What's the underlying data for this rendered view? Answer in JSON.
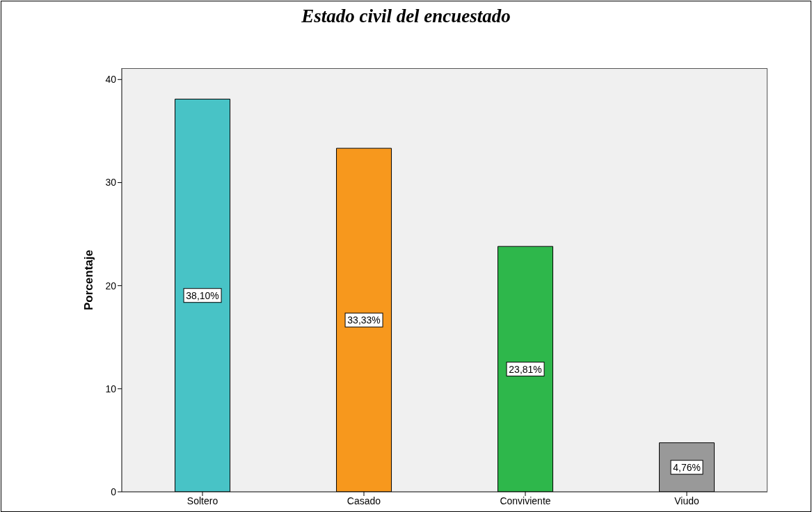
{
  "chart_data": {
    "type": "bar",
    "title": "Estado civil del encuestado",
    "ylabel": "Porcentaje",
    "categories": [
      "Soltero",
      "Casado",
      "Conviviente",
      "Viudo"
    ],
    "values": [
      38.1,
      33.33,
      23.81,
      4.76
    ],
    "colors": [
      "#48c3c6",
      "#f7981d",
      "#2eb74b",
      "#999999"
    ],
    "value_labels": [
      "38,10%",
      "33,33%",
      "23,81%",
      "4,76%"
    ],
    "ylim": [
      0,
      41.1
    ],
    "yticks": [
      0,
      10,
      20,
      30,
      40
    ]
  }
}
